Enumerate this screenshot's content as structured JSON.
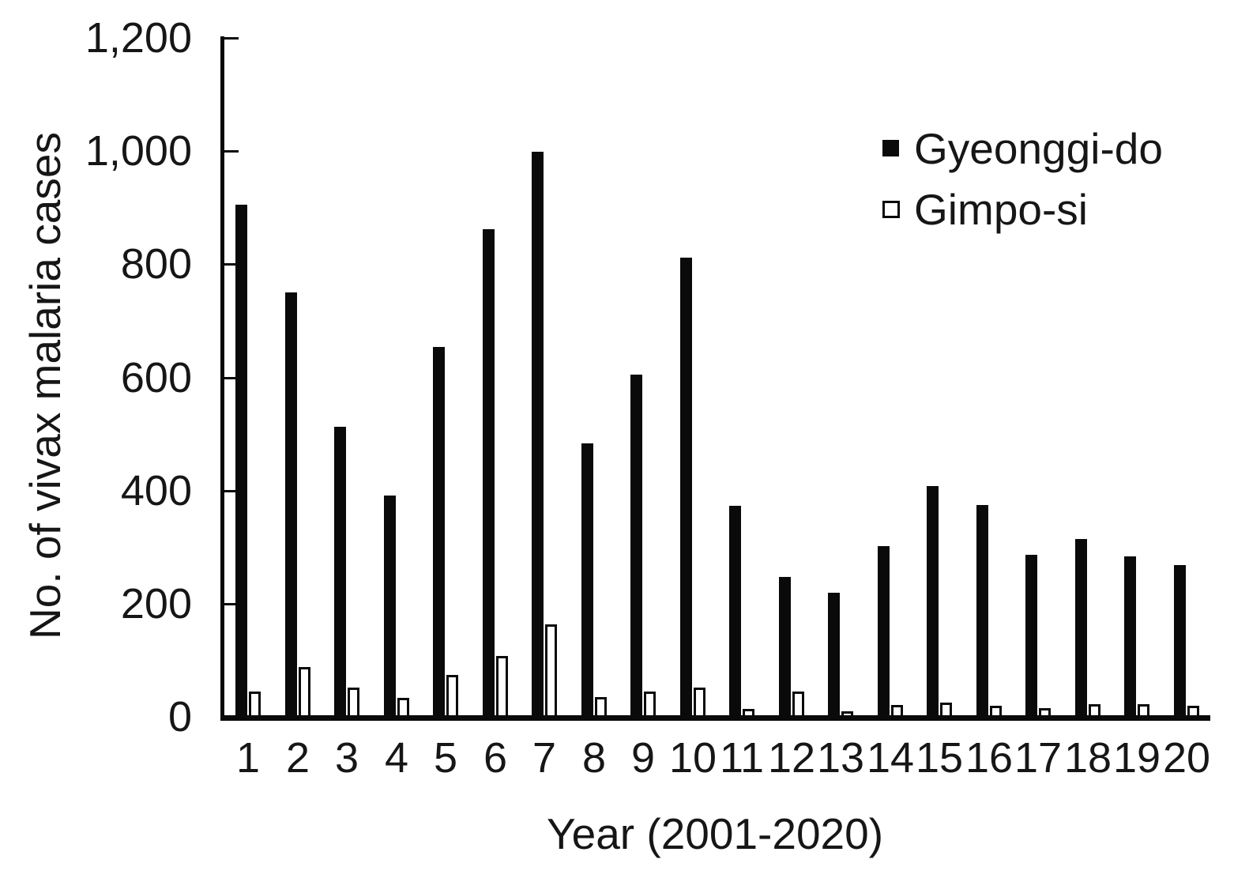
{
  "figure": {
    "kind": "published bar chart figure"
  },
  "chart_data": {
    "type": "bar",
    "title": "",
    "xlabel": "Year (2001-2020)",
    "ylabel": "No. of vivax malaria cases",
    "categories": [
      "1",
      "2",
      "3",
      "4",
      "5",
      "6",
      "7",
      "8",
      "9",
      "10",
      "11",
      "12",
      "13",
      "14",
      "15",
      "16",
      "17",
      "18",
      "19",
      "20"
    ],
    "series": [
      {
        "name": "Gyeonggi-do",
        "style": "filled",
        "fill": "#0a0a0a",
        "values": [
          908,
          753,
          515,
          394,
          657,
          865,
          1002,
          486,
          608,
          814,
          376,
          250,
          222,
          305,
          411,
          377,
          289,
          317,
          286,
          271
        ]
      },
      {
        "name": "Gimpo-si",
        "style": "open",
        "fill": "#ffffff",
        "values": [
          48,
          91,
          54,
          36,
          77,
          110,
          166,
          38,
          48,
          54,
          17,
          48,
          13,
          24,
          28,
          22,
          18,
          25,
          25,
          22
        ]
      }
    ],
    "ylim": [
      0,
      1200
    ],
    "yticks": [
      {
        "value": 0,
        "label": "0"
      },
      {
        "value": 200,
        "label": "200"
      },
      {
        "value": 400,
        "label": "400"
      },
      {
        "value": 600,
        "label": "600"
      },
      {
        "value": 800,
        "label": "800"
      },
      {
        "value": 1000,
        "label": "1,000"
      },
      {
        "value": 1200,
        "label": "1,200"
      }
    ],
    "grid": false,
    "legend_position": "upper right",
    "legend": [
      {
        "label": "Gyeonggi-do",
        "marker": "filled-square"
      },
      {
        "label": "Gimpo-si",
        "marker": "open-square"
      }
    ],
    "colors": {
      "bar_fill": "#0a0a0a",
      "bar_open_fill": "#ffffff",
      "axis": "#0a0a0a",
      "text": "#161616"
    }
  }
}
